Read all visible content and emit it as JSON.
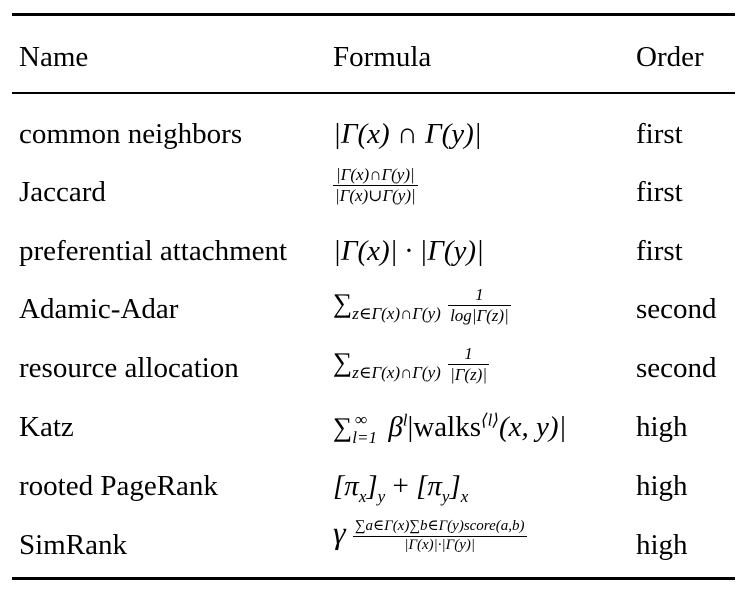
{
  "table": {
    "headers": [
      "Name",
      "Formula",
      "Order"
    ],
    "rows": [
      {
        "name": "common neighbors",
        "formula": "|Γ(x) ∩ Γ(y)|",
        "order": "first"
      },
      {
        "name": "Jaccard",
        "formula": "|Γ(x)∩Γ(y)| / |Γ(x)∪Γ(y)|",
        "formula_parts": {
          "numerator": "|Γ(x)∩Γ(y)|",
          "denominator": "|Γ(x)∪Γ(y)|"
        },
        "order": "first"
      },
      {
        "name": "preferential attachment",
        "formula": "|Γ(x)| · |Γ(y)|",
        "order": "first"
      },
      {
        "name": "Adamic-Adar",
        "formula": "∑_{z∈Γ(x)∩Γ(y)} 1 / log|Γ(z)|",
        "formula_parts": {
          "sum": "∑",
          "sub": "z∈Γ(x)∩Γ(y)",
          "numerator": "1",
          "denominator": "log|Γ(z)|"
        },
        "order": "second"
      },
      {
        "name": "resource allocation",
        "formula": "∑_{z∈Γ(x)∩Γ(y)} 1 / |Γ(z)|",
        "formula_parts": {
          "sum": "∑",
          "sub": "z∈Γ(x)∩Γ(y)",
          "numerator": "1",
          "denominator": "|Γ(z)|"
        },
        "order": "second"
      },
      {
        "name": "Katz",
        "formula": "∑_{l=1}^{∞} β^l |walks^{⟨l⟩}(x,y)|",
        "formula_parts": {
          "sum": "∑",
          "sub": "l=1",
          "sup": "∞",
          "beta": "β",
          "beta_sup": "l",
          "walks": "|walks",
          "walks_sup": "⟨l⟩",
          "walks_args": "(x, y)|"
        },
        "order": "high"
      },
      {
        "name": "rooted PageRank",
        "formula": "[π_x]_y + [π_y]_x",
        "formula_parts": {
          "a_open": "[π",
          "a_inner_sub": "x",
          "a_close": "]",
          "a_outer_sub": "y",
          "plus": " + ",
          "b_open": "[π",
          "b_inner_sub": "y",
          "b_close": "]",
          "b_outer_sub": "x"
        },
        "order": "high"
      },
      {
        "name": "SimRank",
        "formula": "γ · ∑_{a∈Γ(x)}∑_{b∈Γ(y)} score(a,b) / (|Γ(x)|·|Γ(y)|)",
        "formula_parts": {
          "gamma": "γ",
          "numerator": "∑a∈Γ(x)∑b∈Γ(y)score(a,b)",
          "denominator": "|Γ(x)|·|Γ(y)|"
        },
        "order": "high"
      }
    ]
  }
}
